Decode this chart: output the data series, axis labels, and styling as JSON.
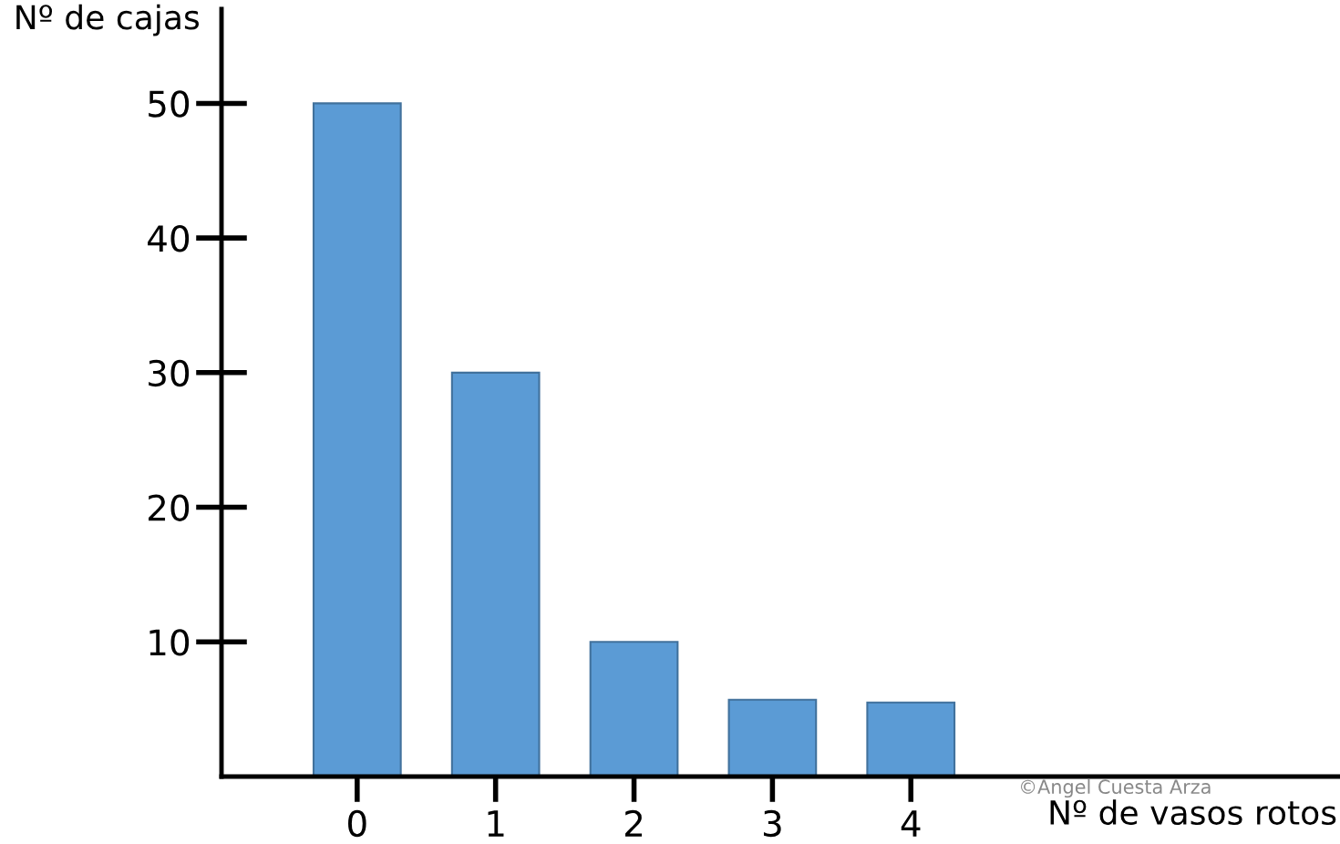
{
  "chart_data": {
    "type": "bar",
    "xlabel": "Nº de vasos rotos",
    "ylabel": "Nº de cajas",
    "categories": [
      "0",
      "1",
      "2",
      "3",
      "4"
    ],
    "values": [
      50,
      30,
      10,
      5.7,
      5.5
    ],
    "color": "#5b9bd5",
    "ylim": [
      0,
      57
    ],
    "yticks": [
      10,
      20,
      30,
      40,
      50
    ],
    "grid": false,
    "legend": false,
    "annotations": [
      "©Angel Cuesta Arza"
    ]
  }
}
